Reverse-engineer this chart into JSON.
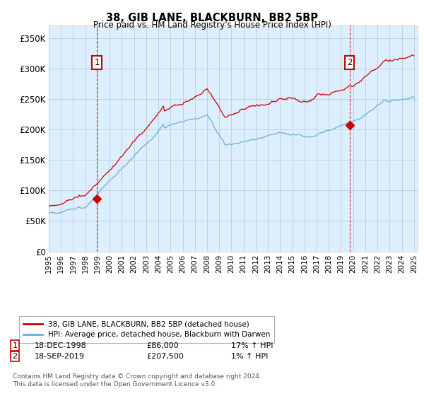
{
  "title": "38, GIB LANE, BLACKBURN, BB2 5BP",
  "subtitle": "Price paid vs. HM Land Registry's House Price Index (HPI)",
  "ylim": [
    0,
    370000
  ],
  "yticks": [
    0,
    50000,
    100000,
    150000,
    200000,
    250000,
    300000,
    350000
  ],
  "ytick_labels": [
    "£0",
    "£50K",
    "£100K",
    "£150K",
    "£200K",
    "£250K",
    "£300K",
    "£350K"
  ],
  "hpi_color": "#6baed6",
  "hpi_fill_color": "#ddeeff",
  "price_color": "#cc0000",
  "annotation_box_color": "#cc0000",
  "annotation_text_color": "#000000",
  "sale1_date": "18-DEC-1998",
  "sale1_price": 86000,
  "sale1_hpi": "17% ↑ HPI",
  "sale2_date": "18-SEP-2019",
  "sale2_price": 207500,
  "sale2_hpi": "1% ↑ HPI",
  "legend_line1": "38, GIB LANE, BLACKBURN, BB2 5BP (detached house)",
  "legend_line2": "HPI: Average price, detached house, Blackburn with Darwen",
  "footnote": "Contains HM Land Registry data © Crown copyright and database right 2024.\nThis data is licensed under the Open Government Licence v3.0.",
  "background_color": "#ffffff",
  "plot_bg_color": "#ddeeff",
  "grid_color": "#bbccdd"
}
